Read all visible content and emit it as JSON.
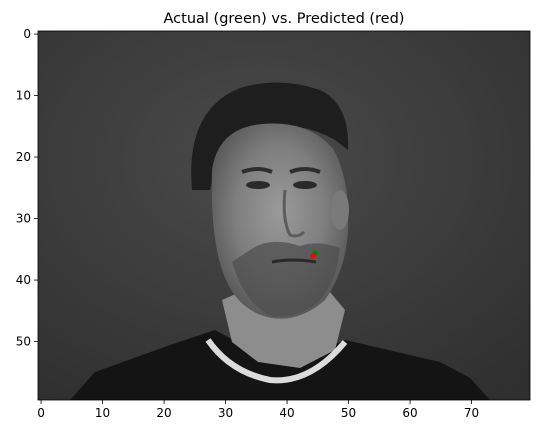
{
  "chart_data": {
    "type": "image",
    "title": "Actual (green) vs. Predicted (red)",
    "image": {
      "description_free": true,
      "width": 80,
      "height": 60,
      "colormap": "gray"
    },
    "xlim": [
      -0.5,
      79.5
    ],
    "ylim": [
      59.5,
      -0.5
    ],
    "xticks": [
      0,
      10,
      20,
      30,
      40,
      50,
      60,
      70
    ],
    "yticks": [
      0,
      10,
      20,
      30,
      40,
      50
    ],
    "points": [
      {
        "label": "actual",
        "x": 44.6,
        "y": 35.6,
        "color": "#008000"
      },
      {
        "label": "predicted",
        "x": 44.2,
        "y": 36.1,
        "color": "#ff0000"
      }
    ],
    "grid": false,
    "legend": "none"
  }
}
